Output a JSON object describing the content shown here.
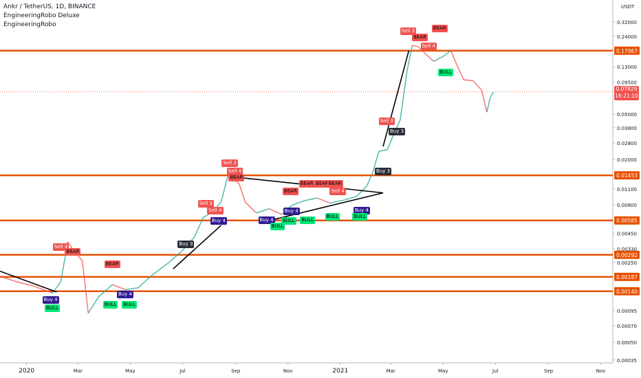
{
  "header": {
    "symbol_line": "Ankr / TetherUS, 1D, BINANCE",
    "indicator_1": "EngineeringRobo Deluxe ",
    "indicator_2": "EngineeringRobo "
  },
  "price_axis": {
    "currency": "USDT",
    "last_price": "0.07829",
    "countdown": "16:21:10"
  },
  "colors": {
    "up": "#26a69a",
    "down": "#ef5350",
    "level": "#e65100",
    "sell": "#ef5350",
    "bear": "#ef5350",
    "buy_dark": "#2a2e39",
    "buy_purple": "#311b92",
    "bull": "#00e676",
    "price_line": "#ef5350"
  },
  "chart_data": {
    "type": "candlestick",
    "log_scale": true,
    "grid": false,
    "x_range": [
      "2019-12-01",
      "2021-11-15"
    ],
    "y_range": [
      0.00033,
      0.5
    ],
    "x_ticks": [
      {
        "date": "2020-01-01",
        "label": "2020"
      },
      {
        "date": "2020-03-01",
        "label": "Mar"
      },
      {
        "date": "2020-05-01",
        "label": "May"
      },
      {
        "date": "2020-07-01",
        "label": "Jul"
      },
      {
        "date": "2020-09-01",
        "label": "Sep"
      },
      {
        "date": "2020-11-01",
        "label": "Nov"
      },
      {
        "date": "2021-01-01",
        "label": "2021"
      },
      {
        "date": "2021-03-01",
        "label": "Mar"
      },
      {
        "date": "2021-05-01",
        "label": "May"
      },
      {
        "date": "2021-07-01",
        "label": "Jul"
      },
      {
        "date": "2021-09-01",
        "label": "Sep"
      },
      {
        "date": "2021-11-01",
        "label": "Nov"
      }
    ],
    "y_ticks": [
      {
        "v": 0.32,
        "label": "0.32000"
      },
      {
        "v": 0.24,
        "label": "0.24000"
      },
      {
        "v": 0.13,
        "label": "0.13000"
      },
      {
        "v": 0.095,
        "label": "0.09500"
      },
      {
        "v": 0.05,
        "label": "0.05000"
      },
      {
        "v": 0.038,
        "label": "0.03800"
      },
      {
        "v": 0.028,
        "label": "0.02800"
      },
      {
        "v": 0.02,
        "label": "0.02000"
      },
      {
        "v": 0.011,
        "label": "0.01100"
      },
      {
        "v": 0.008,
        "label": "0.00800"
      },
      {
        "v": 0.0045,
        "label": "0.00450"
      },
      {
        "v": 0.0033,
        "label": "0.00330"
      },
      {
        "v": 0.0025,
        "label": "0.00250"
      },
      {
        "v": 0.00095,
        "label": "0.00095"
      },
      {
        "v": 0.0007,
        "label": "0.00070"
      },
      {
        "v": 0.0005,
        "label": "0.00050"
      },
      {
        "v": 0.00035,
        "label": "0.00035"
      }
    ],
    "horizontal_levels": [
      {
        "v": 0.17967,
        "label": "0.17967"
      },
      {
        "v": 0.01453,
        "label": "0.01453"
      },
      {
        "v": 0.00585,
        "label": "0.00585"
      },
      {
        "v": 0.00292,
        "label": "0.00292"
      },
      {
        "v": 0.00187,
        "label": "0.00187"
      },
      {
        "v": 0.0014,
        "label": "0.00140"
      }
    ],
    "last_price": 0.07829,
    "price_path": [
      [
        "2019-12-01",
        0.0019
      ],
      [
        "2019-12-20",
        0.0017
      ],
      [
        "2020-01-10",
        0.00155
      ],
      [
        "2020-01-31",
        0.00135
      ],
      [
        "2020-02-10",
        0.0017
      ],
      [
        "2020-02-18",
        0.0038
      ],
      [
        "2020-02-26",
        0.0031
      ],
      [
        "2020-03-06",
        0.0026
      ],
      [
        "2020-03-13",
        0.0009
      ],
      [
        "2020-03-25",
        0.00125
      ],
      [
        "2020-04-10",
        0.0016
      ],
      [
        "2020-04-25",
        0.00145
      ],
      [
        "2020-05-10",
        0.0015
      ],
      [
        "2020-05-25",
        0.0019
      ],
      [
        "2020-06-15",
        0.0025
      ],
      [
        "2020-07-01",
        0.0032
      ],
      [
        "2020-07-15",
        0.0042
      ],
      [
        "2020-07-25",
        0.0062
      ],
      [
        "2020-08-05",
        0.0069
      ],
      [
        "2020-08-15",
        0.0085
      ],
      [
        "2020-08-23",
        0.0145
      ],
      [
        "2020-08-30",
        0.0135
      ],
      [
        "2020-09-05",
        0.0123
      ],
      [
        "2020-09-12",
        0.0085
      ],
      [
        "2020-09-25",
        0.0068
      ],
      [
        "2020-10-10",
        0.0074
      ],
      [
        "2020-10-25",
        0.0066
      ],
      [
        "2020-11-05",
        0.0079
      ],
      [
        "2020-11-20",
        0.0087
      ],
      [
        "2020-12-05",
        0.0092
      ],
      [
        "2020-12-20",
        0.0083
      ],
      [
        "2021-01-05",
        0.0088
      ],
      [
        "2021-01-20",
        0.0095
      ],
      [
        "2021-02-01",
        0.0117
      ],
      [
        "2021-02-08",
        0.0155
      ],
      [
        "2021-02-15",
        0.0235
      ],
      [
        "2021-02-25",
        0.0245
      ],
      [
        "2021-03-05",
        0.034
      ],
      [
        "2021-03-12",
        0.0445
      ],
      [
        "2021-03-20",
        0.12
      ],
      [
        "2021-03-26",
        0.2
      ],
      [
        "2021-04-02",
        0.195
      ],
      [
        "2021-04-10",
        0.17
      ],
      [
        "2021-04-20",
        0.145
      ],
      [
        "2021-05-01",
        0.16
      ],
      [
        "2021-05-10",
        0.18
      ],
      [
        "2021-05-18",
        0.13
      ],
      [
        "2021-05-25",
        0.1
      ],
      [
        "2021-06-05",
        0.098
      ],
      [
        "2021-06-15",
        0.081
      ],
      [
        "2021-06-21",
        0.052
      ],
      [
        "2021-06-25",
        0.07
      ],
      [
        "2021-06-29",
        0.07829
      ]
    ],
    "trendlines": [
      {
        "points": [
          [
            "2019-12-01",
            0.0021
          ],
          [
            "2020-02-05",
            0.00138
          ]
        ]
      },
      {
        "points": [
          [
            "2020-06-20",
            0.0022
          ],
          [
            "2020-08-15",
            0.0053
          ]
        ]
      },
      {
        "points": [
          [
            "2020-08-25",
            0.0142
          ],
          [
            "2021-02-20",
            0.0102
          ]
        ]
      },
      {
        "points": [
          [
            "2020-10-05",
            0.0057
          ],
          [
            "2021-02-20",
            0.0102
          ]
        ]
      },
      {
        "points": [
          [
            "2021-02-20",
            0.026
          ],
          [
            "2021-03-22",
            0.18
          ]
        ]
      }
    ],
    "signals": [
      {
        "date": "2020-02-10",
        "price": 0.0034,
        "text": "Sell 4",
        "kind": "sell",
        "align": "bottom"
      },
      {
        "date": "2020-02-24",
        "price": 0.0031,
        "text": "BEAR",
        "kind": "bear",
        "align": "bottom"
      },
      {
        "date": "2020-01-29",
        "price": 0.00118,
        "text": "Buy 4",
        "kind": "buy_purple",
        "align": "top"
      },
      {
        "date": "2020-01-31",
        "price": 0.001,
        "text": "BULL",
        "kind": "bull",
        "align": "top"
      },
      {
        "date": "2020-04-10",
        "price": 0.0024,
        "text": "BEAR",
        "kind": "bear",
        "align": "bottom"
      },
      {
        "date": "2020-04-25",
        "price": 0.00132,
        "text": "Buy 4",
        "kind": "buy_purple",
        "align": "top"
      },
      {
        "date": "2020-04-08",
        "price": 0.00106,
        "text": "BULL",
        "kind": "bull",
        "align": "top"
      },
      {
        "date": "2020-04-30",
        "price": 0.00106,
        "text": "BULL",
        "kind": "bull",
        "align": "top"
      },
      {
        "date": "2020-07-05",
        "price": 0.0036,
        "text": "Buy 3",
        "kind": "buy_dark",
        "align": "top"
      },
      {
        "date": "2020-07-28",
        "price": 0.0082,
        "text": "Sell 3",
        "kind": "sell",
        "align": "bottom"
      },
      {
        "date": "2020-08-08",
        "price": 0.0071,
        "text": "Sell 4",
        "kind": "sell",
        "align": "bottom"
      },
      {
        "date": "2020-08-12",
        "price": 0.0058,
        "text": "Buy 4",
        "kind": "buy_purple",
        "align": "top"
      },
      {
        "date": "2020-08-25",
        "price": 0.0185,
        "text": "Sell 3",
        "kind": "sell",
        "align": "bottom"
      },
      {
        "date": "2020-08-31",
        "price": 0.0157,
        "text": "Sell 4",
        "kind": "sell",
        "align": "bottom"
      },
      {
        "date": "2020-09-02",
        "price": 0.0138,
        "text": "BEAR",
        "kind": "bear",
        "align": "bottom"
      },
      {
        "date": "2020-10-07",
        "price": 0.0059,
        "text": "Buy 4",
        "kind": "buy_purple",
        "align": "top"
      },
      {
        "date": "2020-10-20",
        "price": 0.0052,
        "text": "BULL",
        "kind": "bull",
        "align": "top"
      },
      {
        "date": "2020-11-04",
        "price": 0.0105,
        "text": "BEAR",
        "kind": "bear",
        "align": "bottom"
      },
      {
        "date": "2020-11-05",
        "price": 0.007,
        "text": "Buy 4",
        "kind": "buy_purple",
        "align": "top"
      },
      {
        "date": "2020-11-02",
        "price": 0.0058,
        "text": "BULL",
        "kind": "bull",
        "align": "top"
      },
      {
        "date": "2020-11-24",
        "price": 0.0059,
        "text": "BULL",
        "kind": "bull",
        "align": "top"
      },
      {
        "date": "2020-11-23",
        "price": 0.0122,
        "text": "BEAR",
        "kind": "bear",
        "align": "bottom"
      },
      {
        "date": "2020-12-11",
        "price": 0.0122,
        "text": "BEAR",
        "kind": "bear",
        "align": "bottom"
      },
      {
        "date": "2020-12-26",
        "price": 0.0122,
        "text": "BEAR",
        "kind": "bear",
        "align": "bottom"
      },
      {
        "date": "2020-12-23",
        "price": 0.0063,
        "text": "BULL",
        "kind": "bull",
        "align": "top"
      },
      {
        "date": "2020-12-29",
        "price": 0.0105,
        "text": "Sell 4",
        "kind": "sell",
        "align": "bottom"
      },
      {
        "date": "2021-01-26",
        "price": 0.0071,
        "text": "Buy 4",
        "kind": "buy_purple",
        "align": "top"
      },
      {
        "date": "2021-01-24",
        "price": 0.0063,
        "text": "BULL",
        "kind": "bull",
        "align": "top"
      },
      {
        "date": "2021-02-20",
        "price": 0.0157,
        "text": "Buy 3",
        "kind": "buy_dark",
        "align": "top"
      },
      {
        "date": "2021-02-24",
        "price": 0.0435,
        "text": "Sell 3",
        "kind": "sell",
        "align": "bottom"
      },
      {
        "date": "2021-03-08",
        "price": 0.035,
        "text": "Buy 3",
        "kind": "buy_dark",
        "align": "top"
      },
      {
        "date": "2021-03-21",
        "price": 0.265,
        "text": "Sell 3",
        "kind": "sell",
        "align": "bottom"
      },
      {
        "date": "2021-04-04",
        "price": 0.235,
        "text": "BEAR",
        "kind": "bear",
        "align": "bottom"
      },
      {
        "date": "2021-04-14",
        "price": 0.195,
        "text": "Sell 4",
        "kind": "sell",
        "align": "bottom"
      },
      {
        "date": "2021-04-27",
        "price": 0.28,
        "text": "BEAR",
        "kind": "bear",
        "align": "bottom"
      },
      {
        "date": "2021-05-04",
        "price": 0.115,
        "text": "BULL",
        "kind": "bull",
        "align": "top"
      }
    ]
  }
}
